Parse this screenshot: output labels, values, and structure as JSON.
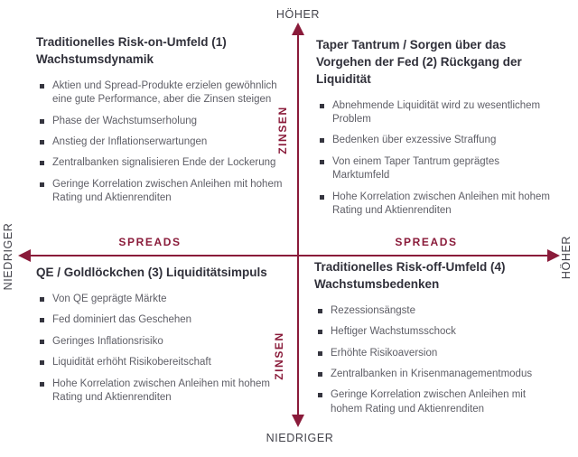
{
  "diagram": {
    "type": "quadrant-matrix",
    "colors": {
      "accent": "#8a1b3a",
      "title_text": "#30303a",
      "body_text": "#5e5e66",
      "axis_end_labels": "#43434b",
      "bullet_marker": "#35353f"
    },
    "axes": {
      "vertical": {
        "word": "ZINSEN",
        "top_end_label": "HÖHER",
        "bottom_end_label": "NIEDRIGER"
      },
      "horizontal": {
        "word": "SPREADS",
        "left_end_label": "NIEDRIGER",
        "right_end_label": "HÖHER"
      }
    },
    "quadrants": [
      {
        "number": 1,
        "position": "top-left",
        "title": "Traditionelles Risk-on-Umfeld (1) Wachstumsdynamik",
        "bullets": [
          "Aktien und Spread-Produkte erzielen gewöhnlich eine gute Performance, aber die Zinsen steigen",
          "Phase der Wachstumserholung",
          "Anstieg der Inflationserwartungen",
          "Zentralbanken signalisieren Ende der Lockerung",
          "Geringe Korrelation zwischen Anleihen mit hohem Rating und Aktienrenditen"
        ]
      },
      {
        "number": 2,
        "position": "top-right",
        "title": "Taper Tantrum / Sorgen über das Vorgehen der Fed (2) Rückgang der Liquidität",
        "bullets": [
          "Abnehmende Liquidität wird zu wesentlichem Problem",
          "Bedenken über exzessive Straffung",
          "Von einem Taper Tantrum geprägtes Marktumfeld",
          "Hohe Korrelation zwischen Anleihen mit hohem Rating und Aktienrenditen"
        ]
      },
      {
        "number": 3,
        "position": "bottom-left",
        "title": "QE / Goldlöckchen (3) Liquiditätsimpuls",
        "bullets": [
          "Von QE geprägte Märkte",
          "Fed dominiert das Geschehen",
          "Geringes Inflationsrisiko",
          "Liquidität erhöht Risikobereitschaft",
          "Hohe Korrelation zwischen Anleihen mit hohem Rating und Aktienrenditen"
        ]
      },
      {
        "number": 4,
        "position": "bottom-right",
        "title": "Traditionelles Risk-off-Umfeld (4) Wachstumsbedenken",
        "bullets": [
          "Rezessionsängste",
          "Heftiger Wachstumsschock",
          "Erhöhte Risikoaversion",
          "Zentralbanken in Krisenmanagementmodus",
          "Geringe Korrelation zwischen Anleihen mit hohem Rating und Aktienrenditen"
        ]
      }
    ]
  }
}
